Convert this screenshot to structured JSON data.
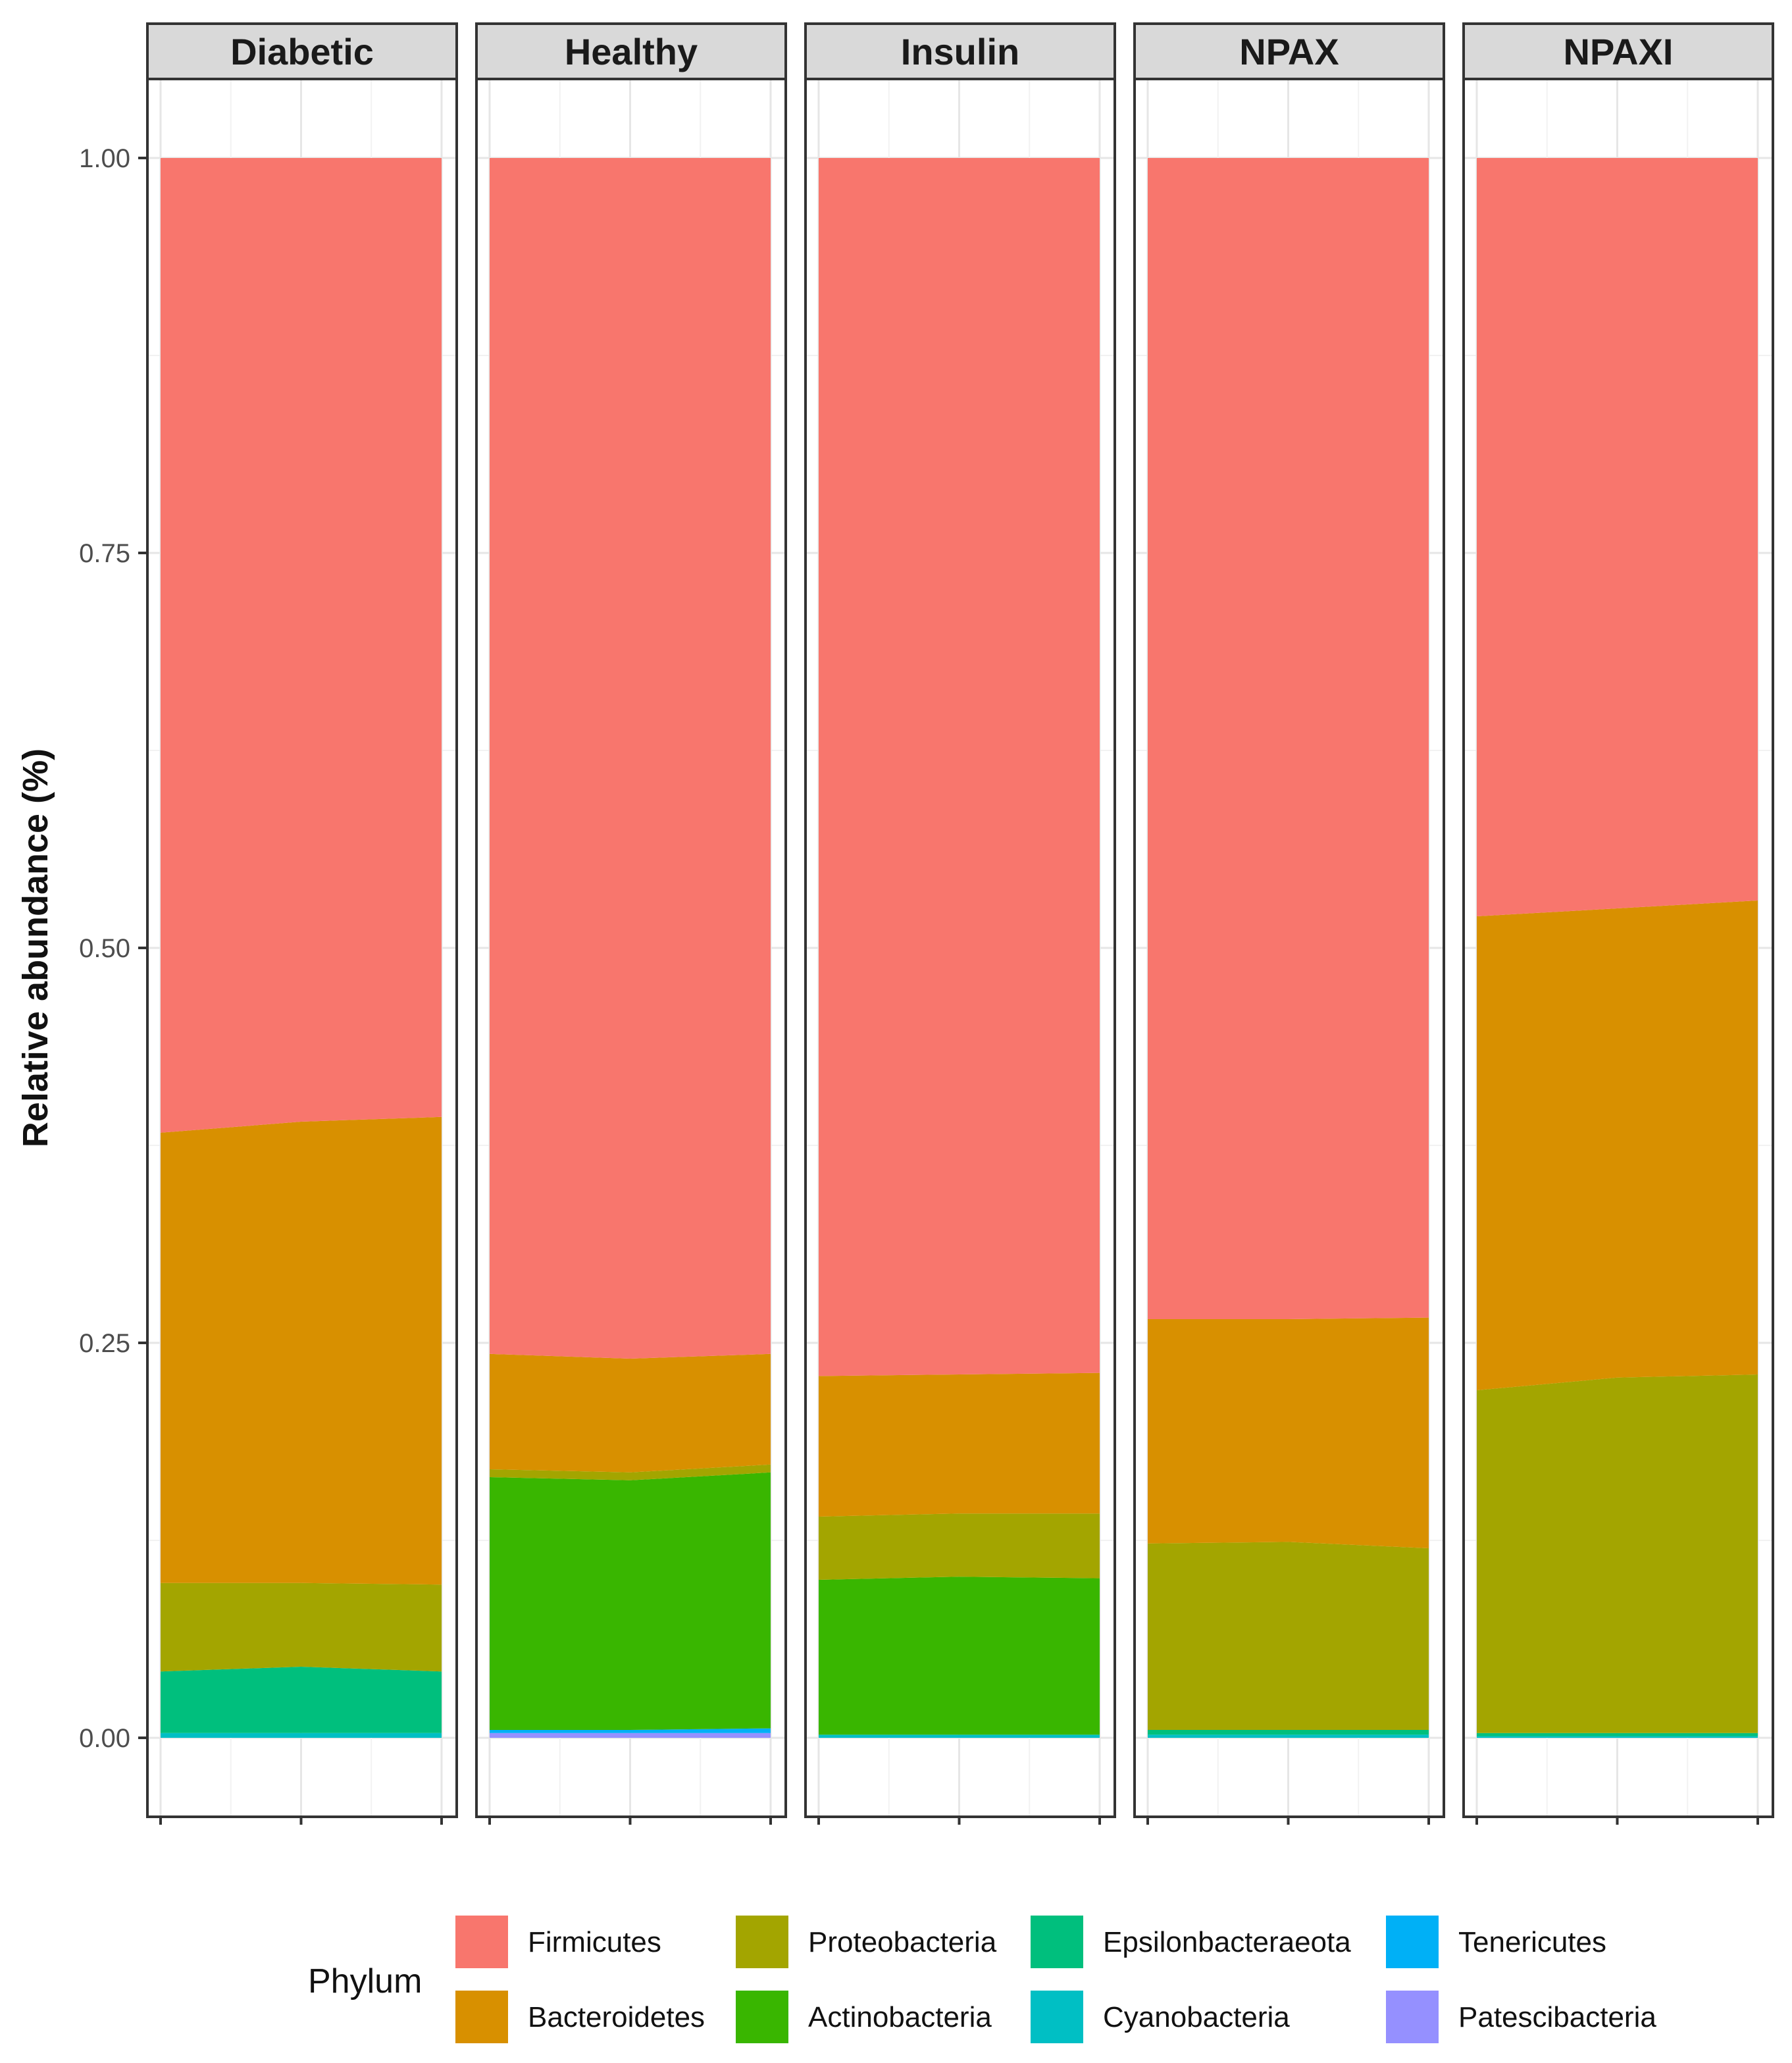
{
  "chart_data": {
    "type": "area",
    "ylabel": "Relative abundance (%)",
    "ylim": [
      -0.05,
      1.05
    ],
    "yticks": [
      0.0,
      0.25,
      0.5,
      0.75,
      1.0
    ],
    "ytick_labels": [
      "0.00",
      "0.25",
      "0.50",
      "0.75",
      "1.00"
    ],
    "legend_title": "Phylum",
    "legend_position": "bottom",
    "series": [
      {
        "name": "Firmicutes",
        "color": "#F8766D"
      },
      {
        "name": "Bacteroidetes",
        "color": "#D89000"
      },
      {
        "name": "Proteobacteria",
        "color": "#A3A500"
      },
      {
        "name": "Actinobacteria",
        "color": "#39B600"
      },
      {
        "name": "Epsilonbacteraeota",
        "color": "#00BF7D"
      },
      {
        "name": "Cyanobacteria",
        "color": "#00BFC4"
      },
      {
        "name": "Tenericutes",
        "color": "#00B0F6"
      },
      {
        "name": "Patescibacteria",
        "color": "#9590FF"
      }
    ],
    "stack_order_bottom_to_top": [
      "Patescibacteria",
      "Tenericutes",
      "Cyanobacteria",
      "Epsilonbacteraeota",
      "Actinobacteria",
      "Proteobacteria",
      "Bacteroidetes",
      "Firmicutes"
    ],
    "x_positions": [
      0,
      1,
      2
    ],
    "panels": [
      {
        "name": "Diabetic",
        "cumulative_tops": {
          "Patescibacteria": [
            0.0,
            0.0,
            0.0
          ],
          "Tenericutes": [
            0.0,
            0.0,
            0.0
          ],
          "Cyanobacteria": [
            0.003,
            0.003,
            0.003
          ],
          "Epsilonbacteraeota": [
            0.042,
            0.045,
            0.042
          ],
          "Actinobacteria": [
            0.042,
            0.045,
            0.042
          ],
          "Proteobacteria": [
            0.098,
            0.098,
            0.097
          ],
          "Bacteroidetes": [
            0.383,
            0.39,
            0.393
          ],
          "Firmicutes": [
            1.0,
            1.0,
            1.0
          ]
        }
      },
      {
        "name": "Healthy",
        "cumulative_tops": {
          "Patescibacteria": [
            0.003,
            0.003,
            0.003
          ],
          "Tenericutes": [
            0.005,
            0.005,
            0.006
          ],
          "Cyanobacteria": [
            0.005,
            0.005,
            0.006
          ],
          "Epsilonbacteraeota": [
            0.005,
            0.005,
            0.006
          ],
          "Actinobacteria": [
            0.165,
            0.163,
            0.168
          ],
          "Proteobacteria": [
            0.17,
            0.168,
            0.173
          ],
          "Bacteroidetes": [
            0.243,
            0.24,
            0.243
          ],
          "Firmicutes": [
            1.0,
            1.0,
            1.0
          ]
        }
      },
      {
        "name": "Insulin",
        "cumulative_tops": {
          "Patescibacteria": [
            0.0,
            0.0,
            0.0
          ],
          "Tenericutes": [
            0.0,
            0.0,
            0.0
          ],
          "Cyanobacteria": [
            0.002,
            0.002,
            0.002
          ],
          "Epsilonbacteraeota": [
            0.002,
            0.002,
            0.002
          ],
          "Actinobacteria": [
            0.1,
            0.102,
            0.101
          ],
          "Proteobacteria": [
            0.14,
            0.142,
            0.142
          ],
          "Bacteroidetes": [
            0.229,
            0.23,
            0.231
          ],
          "Firmicutes": [
            1.0,
            1.0,
            1.0
          ]
        }
      },
      {
        "name": "NPAX",
        "cumulative_tops": {
          "Patescibacteria": [
            0.0,
            0.0,
            0.0
          ],
          "Tenericutes": [
            0.0,
            0.0,
            0.0
          ],
          "Cyanobacteria": [
            0.002,
            0.002,
            0.002
          ],
          "Epsilonbacteraeota": [
            0.005,
            0.005,
            0.005
          ],
          "Actinobacteria": [
            0.005,
            0.005,
            0.005
          ],
          "Proteobacteria": [
            0.123,
            0.124,
            0.12
          ],
          "Bacteroidetes": [
            0.265,
            0.265,
            0.266
          ],
          "Firmicutes": [
            1.0,
            1.0,
            1.0
          ]
        }
      },
      {
        "name": "NPAXI",
        "cumulative_tops": {
          "Patescibacteria": [
            0.0,
            0.0,
            0.0
          ],
          "Tenericutes": [
            0.0,
            0.0,
            0.0
          ],
          "Cyanobacteria": [
            0.001,
            0.001,
            0.001
          ],
          "Epsilonbacteraeota": [
            0.003,
            0.003,
            0.003
          ],
          "Actinobacteria": [
            0.003,
            0.003,
            0.003
          ],
          "Proteobacteria": [
            0.22,
            0.228,
            0.23
          ],
          "Bacteroidetes": [
            0.52,
            0.525,
            0.53
          ],
          "Firmicutes": [
            1.0,
            1.0,
            1.0
          ]
        }
      }
    ]
  }
}
